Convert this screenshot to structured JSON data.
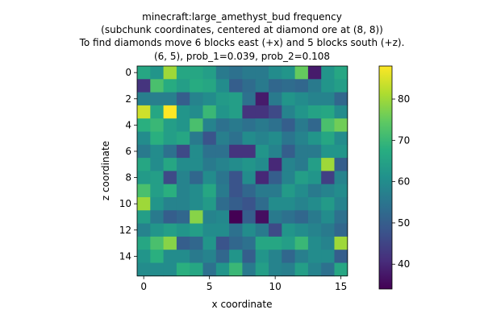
{
  "chart_data": {
    "type": "heatmap",
    "title_lines": [
      "minecraft:large_amethyst_bud frequency",
      "(subchunk coordinates, centered at diamond ore at (8, 8))",
      "To find diamonds move 6 blocks east (+x) and 5 blocks south (+z).",
      "(6, 5), prob_1=0.039, prob_2=0.108"
    ],
    "xlabel": "x coordinate",
    "ylabel": "z coordinate",
    "x_ticks": [
      0,
      5,
      10,
      15
    ],
    "y_ticks": [
      0,
      2,
      4,
      6,
      8,
      10,
      12,
      14
    ],
    "colorbar_ticks": [
      40,
      50,
      60,
      70,
      80
    ],
    "vmin": 34,
    "vmax": 88,
    "colormap": "viridis",
    "grid": false,
    "values": [
      [
        66,
        62,
        80,
        66,
        66,
        64,
        56,
        54,
        56,
        56,
        60,
        62,
        75,
        38,
        62,
        66
      ],
      [
        42,
        72,
        67,
        64,
        67,
        66,
        60,
        50,
        53,
        56,
        52,
        53,
        52,
        56,
        62,
        64
      ],
      [
        57,
        57,
        57,
        50,
        58,
        60,
        63,
        64,
        54,
        38,
        56,
        62,
        60,
        58,
        58,
        52
      ],
      [
        84,
        66,
        88,
        62,
        60,
        70,
        62,
        64,
        42,
        42,
        46,
        58,
        62,
        65,
        66,
        60
      ],
      [
        68,
        70,
        64,
        62,
        72,
        58,
        54,
        56,
        54,
        56,
        54,
        50,
        56,
        52,
        72,
        76
      ],
      [
        60,
        68,
        64,
        66,
        56,
        48,
        57,
        54,
        60,
        58,
        60,
        55,
        58,
        62,
        66,
        60
      ],
      [
        56,
        60,
        54,
        46,
        60,
        54,
        54,
        42,
        42,
        62,
        58,
        50,
        56,
        56,
        62,
        62
      ],
      [
        66,
        60,
        66,
        60,
        60,
        56,
        58,
        60,
        62,
        60,
        40,
        58,
        56,
        64,
        80,
        50
      ],
      [
        63,
        64,
        46,
        58,
        52,
        60,
        55,
        48,
        60,
        40,
        50,
        58,
        64,
        62,
        44,
        58
      ],
      [
        72,
        64,
        68,
        58,
        60,
        66,
        56,
        48,
        52,
        56,
        56,
        63,
        60,
        56,
        58,
        60
      ],
      [
        80,
        62,
        58,
        58,
        60,
        63,
        53,
        50,
        48,
        53,
        60,
        60,
        58,
        60,
        63,
        58
      ],
      [
        64,
        56,
        50,
        52,
        78,
        58,
        59,
        34,
        50,
        36,
        56,
        54,
        52,
        56,
        60,
        54
      ],
      [
        58,
        62,
        64,
        62,
        64,
        60,
        60,
        54,
        60,
        56,
        46,
        62,
        60,
        58,
        56,
        52
      ],
      [
        66,
        72,
        78,
        50,
        52,
        62,
        48,
        52,
        54,
        66,
        66,
        64,
        70,
        60,
        58,
        80
      ],
      [
        62,
        68,
        60,
        60,
        56,
        58,
        52,
        62,
        50,
        62,
        58,
        52,
        57,
        60,
        60,
        50
      ],
      [
        60,
        60,
        60,
        68,
        66,
        54,
        62,
        70,
        56,
        64,
        58,
        57,
        64,
        58,
        54,
        66
      ]
    ]
  }
}
